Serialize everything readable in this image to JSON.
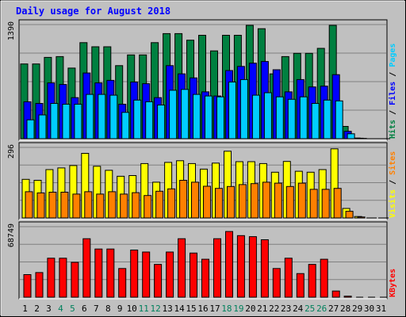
{
  "chart_data": {
    "type": "bar",
    "title": "Daily usage for August 2018",
    "categories": [
      "1",
      "2",
      "3",
      "4",
      "5",
      "6",
      "7",
      "8",
      "9",
      "10",
      "11",
      "12",
      "13",
      "14",
      "15",
      "16",
      "17",
      "18",
      "19",
      "20",
      "21",
      "22",
      "23",
      "24",
      "25",
      "26",
      "27",
      "28",
      "29",
      "30",
      "31"
    ],
    "weekend_categories": [
      "4",
      "5",
      "11",
      "12",
      "18",
      "19",
      "25",
      "26"
    ],
    "panels": [
      {
        "ymax_label": "1390",
        "ymax": 1390,
        "legend": [
          {
            "text": "Pages",
            "color": "#00ccff"
          },
          {
            "text": "Files",
            "color": "#0000ff"
          },
          {
            "text": "Hits",
            "color": "#008040"
          }
        ],
        "series": [
          {
            "name": "Hits",
            "color": "#008040",
            "values": [
              910,
              910,
              990,
              1000,
              860,
              1170,
              1120,
              1120,
              890,
              1020,
              1020,
              1170,
              1280,
              1280,
              1200,
              1260,
              1070,
              1260,
              1260,
              1380,
              1340,
              790,
              1000,
              1040,
              1040,
              1100,
              1380,
              150,
              8,
              0,
              0
            ]
          },
          {
            "name": "Files",
            "color": "#0000ff",
            "values": [
              450,
              430,
              680,
              660,
              500,
              800,
              680,
              710,
              420,
              690,
              670,
              500,
              890,
              790,
              740,
              570,
              520,
              830,
              880,
              920,
              940,
              840,
              570,
              720,
              630,
              640,
              780,
              90,
              6,
              0,
              0
            ]
          },
          {
            "name": "Pages",
            "color": "#00ccff",
            "values": [
              230,
              290,
              430,
              420,
              420,
              540,
              540,
              530,
              320,
              470,
              450,
              410,
              590,
              600,
              540,
              520,
              510,
              690,
              720,
              530,
              560,
              510,
              480,
              510,
              430,
              470,
              460,
              60,
              4,
              0,
              0
            ]
          }
        ]
      },
      {
        "ymax_label": "296",
        "ymax": 296,
        "legend": [
          {
            "text": "Sites",
            "color": "#ff8000"
          },
          {
            "text": "Visits",
            "color": "#ffff00"
          }
        ],
        "series": [
          {
            "name": "Visits",
            "color": "#ffff00",
            "values": [
              162,
              158,
              203,
              210,
              220,
              271,
              217,
              200,
              175,
              178,
              228,
              150,
              233,
              240,
              228,
              205,
              230,
              280,
              236,
              236,
              228,
              192,
              237,
              196,
              192,
              203,
              290,
              40,
              6,
              0,
              0
            ]
          },
          {
            "name": "Sites",
            "color": "#ff8000",
            "values": [
              110,
              105,
              108,
              108,
              100,
              110,
              100,
              110,
              100,
              106,
              94,
              112,
              122,
              158,
              150,
              133,
              124,
              132,
              140,
              144,
              150,
              146,
              132,
              146,
              120,
              120,
              124,
              28,
              4,
              0,
              0
            ]
          }
        ]
      },
      {
        "ymax_label": "68749",
        "ymax": 68749,
        "legend": [
          {
            "text": "KBytes",
            "color": "#ff0000"
          }
        ],
        "series": [
          {
            "name": "KBytes",
            "color": "#ff0000",
            "values": [
              22000,
              24000,
              38000,
              38000,
              34000,
              57000,
              47000,
              47000,
              28000,
              46000,
              44000,
              32000,
              44000,
              57000,
              43000,
              37000,
              57000,
              64000,
              60000,
              59000,
              56000,
              28000,
              38000,
              23000,
              32000,
              37000,
              6000,
              1000,
              0,
              0,
              0
            ]
          }
        ]
      }
    ]
  }
}
